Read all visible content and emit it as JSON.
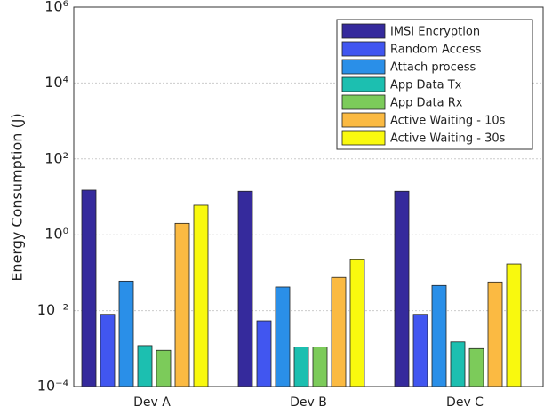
{
  "chart_data": {
    "type": "bar",
    "ylabel": "Energy Consumption (J)",
    "categories": [
      "Dev A",
      "Dev B",
      "Dev C"
    ],
    "series": [
      {
        "name": "IMSI Encryption",
        "color": "#352a9c",
        "values": [
          15,
          14,
          14
        ]
      },
      {
        "name": "Random Access",
        "color": "#4156f0",
        "values": [
          0.008,
          0.0054,
          0.008
        ]
      },
      {
        "name": "Attach process",
        "color": "#2a8fe8",
        "values": [
          0.06,
          0.042,
          0.046
        ]
      },
      {
        "name": "App Data Tx",
        "color": "#1cbfb0",
        "values": [
          0.0012,
          0.0011,
          0.0015
        ]
      },
      {
        "name": "App Data Rx",
        "color": "#7ccb5a",
        "values": [
          0.0009,
          0.0011,
          0.001
        ]
      },
      {
        "name": "Active Waiting - 10s",
        "color": "#fbba42",
        "values": [
          2,
          0.075,
          0.057
        ]
      },
      {
        "name": "Active Waiting - 30s",
        "color": "#f9f90e",
        "values": [
          6,
          0.22,
          0.17
        ]
      }
    ],
    "log_scale": true,
    "ylim": [
      0.0001,
      1000000
    ],
    "yticks": [
      {
        "value": 0.0001,
        "label": "10⁻⁴"
      },
      {
        "value": 0.01,
        "label": "10⁻²"
      },
      {
        "value": 1,
        "label": "10⁰"
      },
      {
        "value": 100,
        "label": "10²"
      },
      {
        "value": 10000,
        "label": "10⁴"
      },
      {
        "value": 1000000,
        "label": "10⁶"
      }
    ],
    "grid": true,
    "legend": "upper right"
  }
}
